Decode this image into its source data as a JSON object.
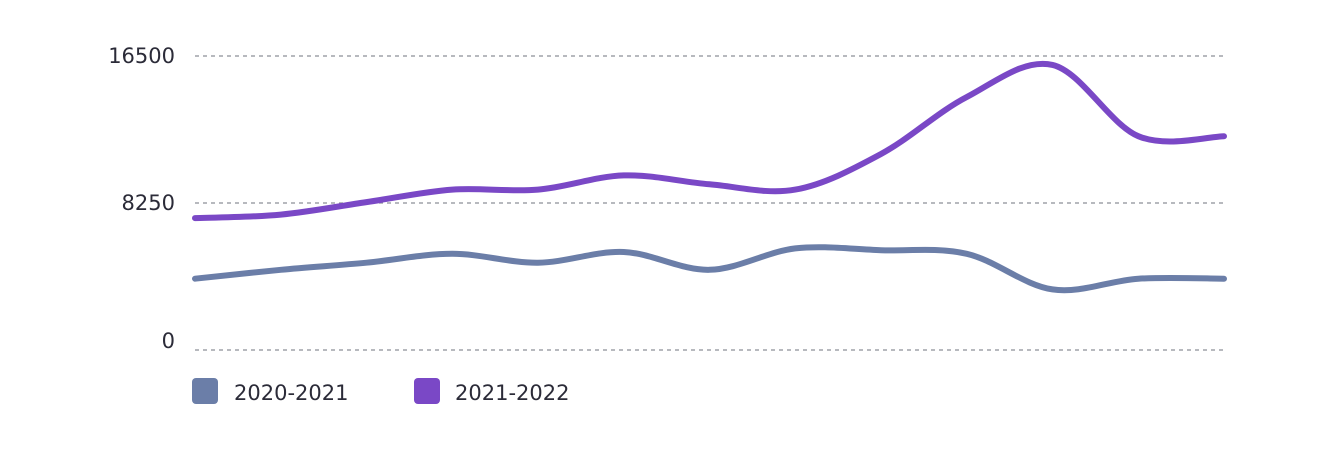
{
  "chart_data": {
    "type": "line",
    "title": "",
    "xlabel": "",
    "ylabel": "",
    "ylim": [
      0,
      16500
    ],
    "yticks": [
      {
        "value": 0,
        "label": "0"
      },
      {
        "value": 8250,
        "label": "8250"
      },
      {
        "value": 16500,
        "label": "16500"
      }
    ],
    "grid": true,
    "legend_position": "bottom-left",
    "x": [
      0,
      1,
      2,
      3,
      4,
      5,
      6,
      7,
      8,
      9,
      10,
      11,
      12
    ],
    "series": [
      {
        "name": "2020-2021",
        "color": "#6b7ea8",
        "values": [
          4000,
          4500,
          4900,
          5400,
          4900,
          5500,
          4500,
          5700,
          5600,
          5400,
          3400,
          4000,
          4000
        ]
      },
      {
        "name": "2021-2022",
        "color": "#7a48c6",
        "values": [
          7400,
          7600,
          8300,
          9000,
          9000,
          9800,
          9300,
          9000,
          11000,
          14200,
          16000,
          12000,
          12000
        ]
      }
    ],
    "x_positions_note": null
  }
}
